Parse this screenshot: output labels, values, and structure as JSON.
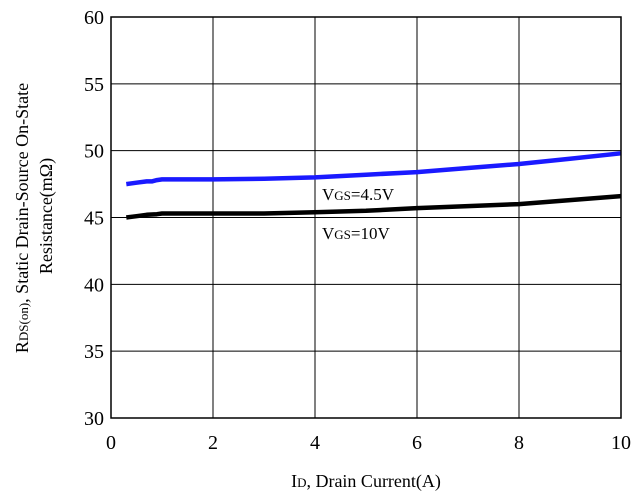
{
  "chart_data": {
    "type": "line",
    "xlabel": {
      "prefix": "I",
      "sub": "D",
      "rest": ", Drain Current(A)"
    },
    "ylabel": {
      "line1": {
        "prefix": "R",
        "sub": "DS(on)",
        "rest": ", Static Drain-Source On-State"
      },
      "line2": "Resistance(mΩ)"
    },
    "xlim": [
      0,
      10
    ],
    "ylim": [
      30,
      60
    ],
    "x_ticks": [
      0,
      2,
      4,
      6,
      8,
      10
    ],
    "x_tick_labels": [
      "0",
      "2",
      "4",
      "6",
      "8",
      "10"
    ],
    "y_ticks": [
      30,
      35,
      40,
      45,
      50,
      55,
      60
    ],
    "y_tick_labels": [
      "30",
      "35",
      "40",
      "45",
      "50",
      "55",
      "60"
    ],
    "grid": true,
    "series": [
      {
        "name": {
          "prefix": "V",
          "sub": "GS",
          "rest": "=4.5V"
        },
        "color": "#1a1aff",
        "x": [
          0.3,
          0.5,
          0.7,
          0.8,
          0.9,
          1.0,
          2.0,
          3.0,
          4.0,
          5.0,
          6.0,
          7.0,
          8.0,
          9.0,
          10.0
        ],
        "y": [
          47.5,
          47.6,
          47.7,
          47.7,
          47.8,
          47.85,
          47.85,
          47.9,
          48.0,
          48.2,
          48.4,
          48.7,
          49.0,
          49.4,
          49.8
        ]
      },
      {
        "name": {
          "prefix": "V",
          "sub": "GS",
          "rest": "=10V"
        },
        "color": "#000000",
        "x": [
          0.3,
          0.5,
          0.7,
          0.9,
          1.0,
          2.0,
          3.0,
          4.0,
          5.0,
          6.0,
          7.0,
          8.0,
          9.0,
          10.0
        ],
        "y": [
          45.0,
          45.1,
          45.2,
          45.25,
          45.3,
          45.3,
          45.3,
          45.4,
          45.5,
          45.7,
          45.85,
          46.0,
          46.3,
          46.6
        ]
      }
    ]
  }
}
